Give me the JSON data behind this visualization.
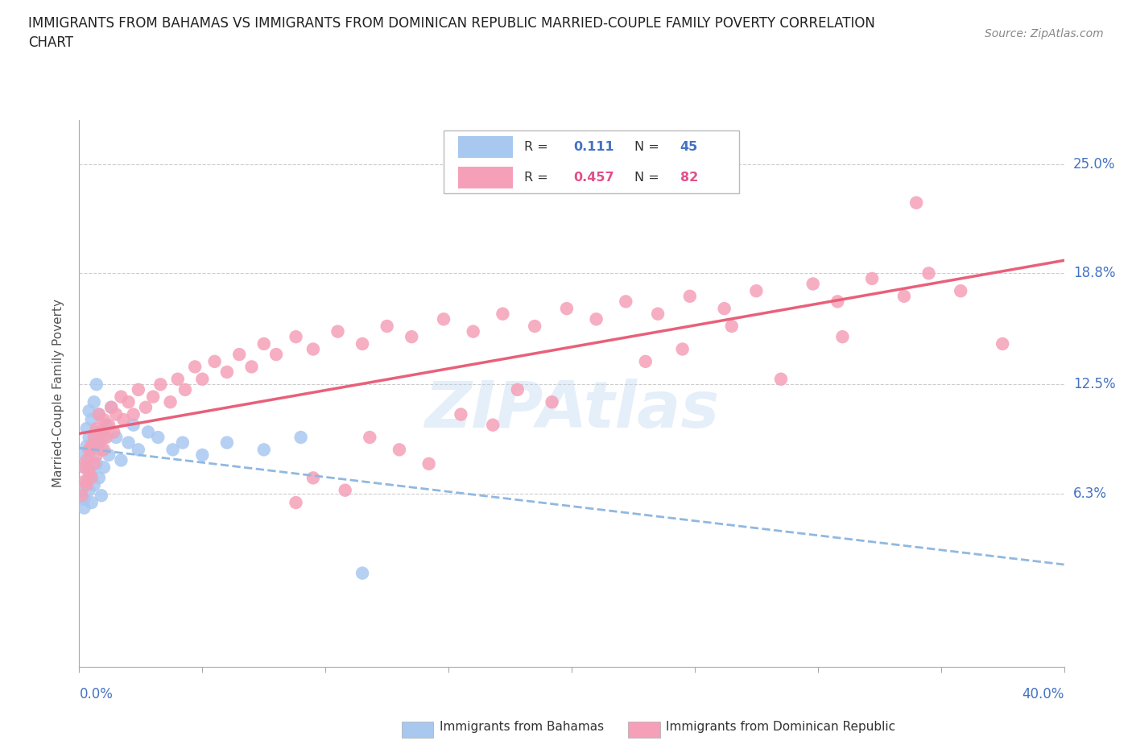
{
  "title_line1": "IMMIGRANTS FROM BAHAMAS VS IMMIGRANTS FROM DOMINICAN REPUBLIC MARRIED-COUPLE FAMILY POVERTY CORRELATION",
  "title_line2": "CHART",
  "source": "Source: ZipAtlas.com",
  "ylabel": "Married-Couple Family Poverty",
  "ytick_labels": [
    "6.3%",
    "12.5%",
    "18.8%",
    "25.0%"
  ],
  "ytick_values": [
    0.063,
    0.125,
    0.188,
    0.25
  ],
  "xmin": 0.0,
  "xmax": 0.4,
  "ymin": -0.035,
  "ymax": 0.275,
  "legend1_r": "0.111",
  "legend1_n": "45",
  "legend2_r": "0.457",
  "legend2_n": "82",
  "color_bahamas": "#a8c8f0",
  "color_dominican": "#f5a0b8",
  "color_bahamas_line": "#90b8e0",
  "color_dominican_line": "#e8607a",
  "color_ytick": "#4472c4",
  "color_title": "#222222",
  "color_source": "#888888",
  "bahamas_x": [
    0.001,
    0.001,
    0.002,
    0.002,
    0.002,
    0.003,
    0.003,
    0.003,
    0.004,
    0.004,
    0.004,
    0.004,
    0.005,
    0.005,
    0.005,
    0.005,
    0.006,
    0.006,
    0.006,
    0.007,
    0.007,
    0.007,
    0.008,
    0.008,
    0.009,
    0.009,
    0.01,
    0.01,
    0.011,
    0.012,
    0.013,
    0.015,
    0.017,
    0.02,
    0.022,
    0.024,
    0.028,
    0.032,
    0.038,
    0.042,
    0.05,
    0.06,
    0.075,
    0.09,
    0.115
  ],
  "bahamas_y": [
    0.085,
    0.065,
    0.078,
    0.06,
    0.055,
    0.09,
    0.07,
    0.1,
    0.082,
    0.065,
    0.095,
    0.11,
    0.075,
    0.088,
    0.058,
    0.105,
    0.092,
    0.068,
    0.115,
    0.08,
    0.098,
    0.125,
    0.072,
    0.108,
    0.062,
    0.088,
    0.078,
    0.095,
    0.102,
    0.085,
    0.112,
    0.095,
    0.082,
    0.092,
    0.102,
    0.088,
    0.098,
    0.095,
    0.088,
    0.092,
    0.085,
    0.092,
    0.088,
    0.095,
    0.018
  ],
  "dominican_x": [
    0.001,
    0.002,
    0.002,
    0.003,
    0.003,
    0.004,
    0.004,
    0.005,
    0.005,
    0.006,
    0.006,
    0.007,
    0.007,
    0.008,
    0.008,
    0.009,
    0.01,
    0.01,
    0.011,
    0.012,
    0.013,
    0.014,
    0.015,
    0.017,
    0.018,
    0.02,
    0.022,
    0.024,
    0.027,
    0.03,
    0.033,
    0.037,
    0.04,
    0.043,
    0.047,
    0.05,
    0.055,
    0.06,
    0.065,
    0.07,
    0.075,
    0.08,
    0.088,
    0.095,
    0.105,
    0.115,
    0.125,
    0.135,
    0.148,
    0.16,
    0.172,
    0.185,
    0.198,
    0.21,
    0.222,
    0.235,
    0.248,
    0.262,
    0.275,
    0.285,
    0.298,
    0.308,
    0.322,
    0.335,
    0.345,
    0.358,
    0.23,
    0.245,
    0.265,
    0.31,
    0.178,
    0.192,
    0.155,
    0.168,
    0.118,
    0.13,
    0.142,
    0.095,
    0.108,
    0.088,
    0.34,
    0.375
  ],
  "dominican_y": [
    0.062,
    0.07,
    0.078,
    0.068,
    0.082,
    0.075,
    0.088,
    0.072,
    0.09,
    0.08,
    0.095,
    0.085,
    0.1,
    0.092,
    0.108,
    0.098,
    0.088,
    0.105,
    0.095,
    0.102,
    0.112,
    0.098,
    0.108,
    0.118,
    0.105,
    0.115,
    0.108,
    0.122,
    0.112,
    0.118,
    0.125,
    0.115,
    0.128,
    0.122,
    0.135,
    0.128,
    0.138,
    0.132,
    0.142,
    0.135,
    0.148,
    0.142,
    0.152,
    0.145,
    0.155,
    0.148,
    0.158,
    0.152,
    0.162,
    0.155,
    0.165,
    0.158,
    0.168,
    0.162,
    0.172,
    0.165,
    0.175,
    0.168,
    0.178,
    0.128,
    0.182,
    0.172,
    0.185,
    0.175,
    0.188,
    0.178,
    0.138,
    0.145,
    0.158,
    0.152,
    0.122,
    0.115,
    0.108,
    0.102,
    0.095,
    0.088,
    0.08,
    0.072,
    0.065,
    0.058,
    0.228,
    0.148
  ]
}
